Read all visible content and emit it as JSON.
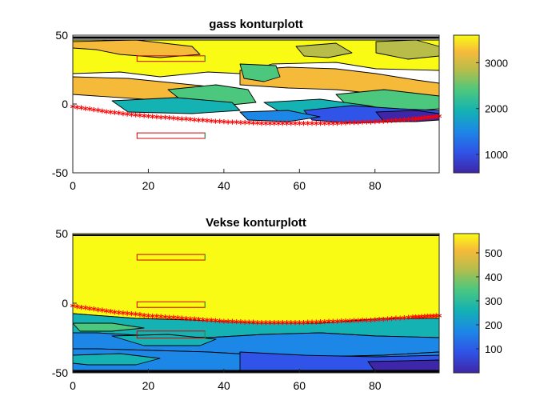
{
  "chart_data": [
    {
      "type": "heatmap",
      "subtype": "filled-contour",
      "title": "gass konturplott",
      "xlabel": "",
      "ylabel": "",
      "xlim": [
        0,
        97
      ],
      "ylim": [
        -50,
        50
      ],
      "x_ticks": [
        "0",
        "20",
        "40",
        "60",
        "80"
      ],
      "y_ticks": [
        "50",
        "0",
        "-50"
      ],
      "colorbar": {
        "limits": [
          600,
          3600
        ],
        "ticks": [
          "3000",
          "2000",
          "1000"
        ],
        "colormap": "parula"
      },
      "markers": {
        "symbol": "*",
        "color": "#ff0000",
        "description": "red star markers along curved lower boundary",
        "points": [
          [
            0,
            -3
          ],
          [
            10,
            -7
          ],
          [
            20,
            -10
          ],
          [
            30,
            -12
          ],
          [
            40,
            -14
          ],
          [
            50,
            -15
          ],
          [
            60,
            -15
          ],
          [
            70,
            -15
          ],
          [
            80,
            -14
          ],
          [
            90,
            -12
          ],
          [
            97,
            -10
          ]
        ]
      },
      "rectangles": [
        {
          "x": [
            17,
            35
          ],
          "y": [
            31,
            35
          ]
        },
        {
          "x": [
            17,
            35
          ],
          "y": [
            -25,
            -21
          ]
        }
      ]
    },
    {
      "type": "heatmap",
      "subtype": "filled-contour",
      "title": "Vekse konturplott",
      "xlabel": "",
      "ylabel": "",
      "xlim": [
        0,
        97
      ],
      "ylim": [
        -50,
        50
      ],
      "x_ticks": [
        "0",
        "20",
        "40",
        "60",
        "80"
      ],
      "y_ticks": [
        "50",
        "0",
        "-50"
      ],
      "colorbar": {
        "limits": [
          0,
          580
        ],
        "ticks": [
          "500",
          "400",
          "300",
          "200",
          "100"
        ],
        "colormap": "parula"
      },
      "markers": {
        "symbol": "*",
        "color": "#ff0000",
        "description": "red star markers along curved boundary",
        "points": [
          [
            0,
            -3
          ],
          [
            10,
            -7
          ],
          [
            20,
            -10
          ],
          [
            30,
            -12
          ],
          [
            40,
            -14
          ],
          [
            50,
            -15
          ],
          [
            60,
            -15
          ],
          [
            70,
            -14
          ],
          [
            80,
            -13
          ],
          [
            90,
            -11
          ],
          [
            97,
            -10
          ]
        ]
      },
      "rectangles": [
        {
          "x": [
            17,
            35
          ],
          "y": [
            31,
            35
          ]
        },
        {
          "x": [
            17,
            35
          ],
          "y": [
            -3,
            1
          ]
        },
        {
          "x": [
            17,
            35
          ],
          "y": [
            -25,
            -20
          ]
        }
      ]
    }
  ]
}
